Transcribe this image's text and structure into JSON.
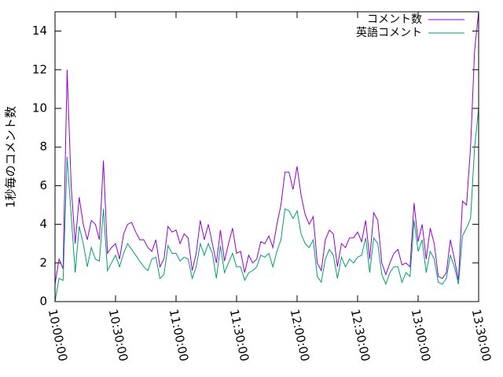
{
  "chart_data": {
    "type": "line",
    "ylabel": "1秒毎のコメント数",
    "x": [
      "10:00:00",
      "10:02:00",
      "10:04:00",
      "10:06:00",
      "10:08:00",
      "10:10:00",
      "10:12:00",
      "10:14:00",
      "10:16:00",
      "10:18:00",
      "10:20:00",
      "10:22:00",
      "10:24:00",
      "10:26:00",
      "10:28:00",
      "10:30:00",
      "10:32:00",
      "10:34:00",
      "10:36:00",
      "10:38:00",
      "10:40:00",
      "10:42:00",
      "10:44:00",
      "10:46:00",
      "10:48:00",
      "10:50:00",
      "10:52:00",
      "10:54:00",
      "10:56:00",
      "10:58:00",
      "11:00:00",
      "11:02:00",
      "11:04:00",
      "11:06:00",
      "11:08:00",
      "11:10:00",
      "11:12:00",
      "11:14:00",
      "11:16:00",
      "11:18:00",
      "11:20:00",
      "11:22:00",
      "11:24:00",
      "11:26:00",
      "11:28:00",
      "11:30:00",
      "11:32:00",
      "11:34:00",
      "11:36:00",
      "11:38:00",
      "11:40:00",
      "11:42:00",
      "11:44:00",
      "11:46:00",
      "11:48:00",
      "11:50:00",
      "11:52:00",
      "11:54:00",
      "11:56:00",
      "11:58:00",
      "12:00:00",
      "12:02:00",
      "12:04:00",
      "12:06:00",
      "12:08:00",
      "12:10:00",
      "12:12:00",
      "12:14:00",
      "12:16:00",
      "12:18:00",
      "12:20:00",
      "12:22:00",
      "12:24:00",
      "12:26:00",
      "12:28:00",
      "12:30:00",
      "12:32:00",
      "12:34:00",
      "12:36:00",
      "12:38:00",
      "12:40:00",
      "12:42:00",
      "12:44:00",
      "12:46:00",
      "12:48:00",
      "12:50:00",
      "12:52:00",
      "12:54:00",
      "12:56:00",
      "12:58:00",
      "13:00:00",
      "13:02:00",
      "13:04:00",
      "13:06:00",
      "13:08:00",
      "13:10:00",
      "13:12:00",
      "13:14:00",
      "13:16:00",
      "13:18:00",
      "13:20:00",
      "13:22:00",
      "13:24:00",
      "13:26:00",
      "13:28:00",
      "13:30:00"
    ],
    "series": [
      {
        "name": "コメント数",
        "color": "#9400d3",
        "values": [
          0.9,
          2.2,
          1.7,
          12,
          6,
          3,
          5.4,
          4,
          3.2,
          4.2,
          4,
          3.2,
          7.3,
          2.5,
          2.8,
          3,
          2.2,
          3.5,
          4,
          4.1,
          3.6,
          3.2,
          3.2,
          2.8,
          2.6,
          3.2,
          1.8,
          2.2,
          3.9,
          3.6,
          3.7,
          3,
          3.5,
          3.3,
          1.6,
          2.5,
          4.2,
          3.2,
          4,
          3,
          2,
          3.7,
          2.1,
          3,
          3.8,
          2.5,
          2.6,
          1.5,
          2.4,
          2,
          2.2,
          3.1,
          3,
          3.4,
          2.8,
          4,
          5,
          6.7,
          6.7,
          5.8,
          7,
          5.5,
          4.5,
          4,
          4.4,
          2,
          1.6,
          3.2,
          3.7,
          3.5,
          1.8,
          3,
          2.8,
          3.3,
          3.3,
          3.6,
          3.1,
          4.2,
          2.2,
          4.6,
          4.2,
          2,
          1.4,
          2,
          2.5,
          2.7,
          1.9,
          2,
          1.8,
          5.1,
          3.1,
          4,
          2.2,
          3.8,
          3,
          1.3,
          1.2,
          1.5,
          3.2,
          2.2,
          1.1,
          5.2,
          5,
          8,
          13,
          15
        ]
      },
      {
        "name": "英語コメント",
        "color": "#009e73",
        "values": [
          0,
          1.2,
          1.1,
          7.5,
          4.5,
          1.5,
          3.9,
          3,
          1.8,
          2.8,
          2.2,
          2.1,
          4.8,
          1.6,
          2,
          2.4,
          1.8,
          2.5,
          3,
          2.7,
          2.4,
          2.1,
          1.8,
          1.6,
          2.2,
          2.3,
          1.2,
          1.4,
          2.9,
          2.5,
          2.5,
          2.1,
          2.3,
          2.2,
          1.2,
          1.8,
          3,
          2.4,
          3,
          2.5,
          1.2,
          2.9,
          1.5,
          2,
          2.5,
          1.8,
          1.8,
          1.1,
          1.5,
          1.6,
          1.8,
          2.4,
          2.3,
          2.5,
          1.8,
          2.6,
          3.2,
          4.8,
          4.7,
          4.3,
          4.7,
          3.5,
          3,
          2.8,
          3.2,
          1.3,
          1,
          2.2,
          2.7,
          2.4,
          1.2,
          2.3,
          1.8,
          2.2,
          2,
          2.3,
          2.4,
          3.3,
          1.5,
          3.3,
          3,
          1.4,
          0.9,
          1.5,
          1.8,
          1.8,
          1,
          1.5,
          1.3,
          4.2,
          2.6,
          3.2,
          1.5,
          2.6,
          2.2,
          1,
          0.9,
          1.2,
          2.4,
          1.8,
          0.9,
          3.4,
          3.8,
          4.3,
          8,
          10
        ]
      }
    ],
    "xlim": [
      "10:00:00",
      "13:30:00"
    ],
    "xticks": [
      "10:00:00",
      "10:30:00",
      "11:00:00",
      "11:30:00",
      "12:00:00",
      "12:30:00",
      "13:00:00",
      "13:30:00"
    ],
    "ylim": [
      0,
      15
    ],
    "yticks": [
      0,
      2,
      4,
      6,
      8,
      10,
      12,
      14
    ],
    "legend": "top-right"
  }
}
